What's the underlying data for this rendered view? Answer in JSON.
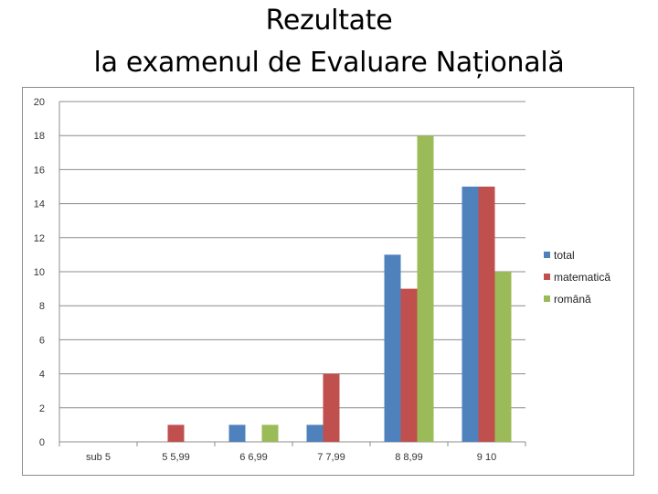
{
  "slide": {
    "title_line1": "Rezultate",
    "title_line2": "la examenul de Evaluare Națională"
  },
  "chart_data": {
    "type": "bar",
    "categories": [
      "sub 5",
      "5 5,99",
      "6 6,99",
      "7 7,99",
      "8 8,99",
      "9 10"
    ],
    "series": [
      {
        "name": "total",
        "color": "#4f81bd",
        "values": [
          0,
          0,
          1,
          1,
          11,
          15
        ]
      },
      {
        "name": "matematică",
        "color": "#c0504d",
        "values": [
          0,
          1,
          0,
          4,
          9,
          15
        ]
      },
      {
        "name": "română",
        "color": "#9bbb59",
        "values": [
          0,
          0,
          1,
          0,
          18,
          10
        ]
      }
    ],
    "ylim": [
      0,
      20
    ],
    "yticks": [
      0,
      2,
      4,
      6,
      8,
      10,
      12,
      14,
      16,
      18,
      20
    ],
    "grid": true,
    "legend_position": "right"
  }
}
